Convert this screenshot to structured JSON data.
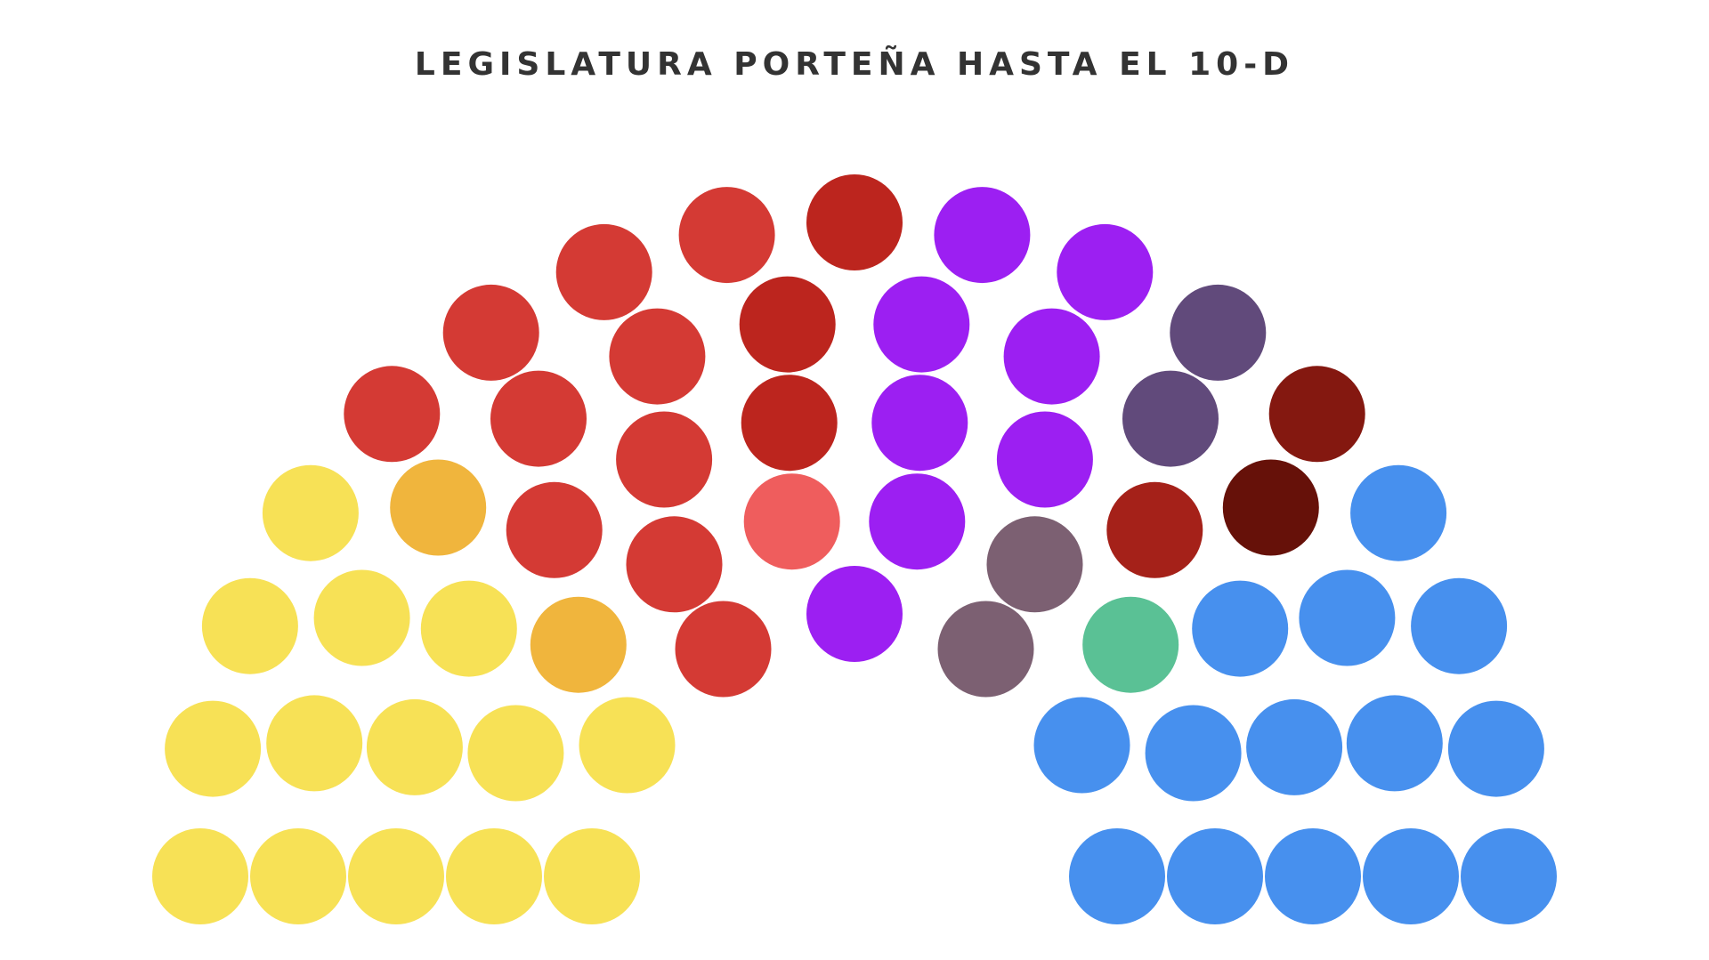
{
  "chart_data": {
    "type": "parliament",
    "title": "LEGISLATURA PORTEÑA HASTA EL 10-D",
    "total_seats": 60,
    "groups": [
      {
        "color": "#F7E156",
        "seats": 14
      },
      {
        "color": "#F0B53D",
        "seats": 2
      },
      {
        "color": "#D43A34",
        "seats": 10
      },
      {
        "color": "#EF5D5D",
        "seats": 1
      },
      {
        "color": "#BC251E",
        "seats": 3
      },
      {
        "color": "#9C1FF2",
        "seats": 8
      },
      {
        "color": "#7C6072",
        "seats": 2
      },
      {
        "color": "#614A7B",
        "seats": 2
      },
      {
        "color": "#A52119",
        "seats": 1
      },
      {
        "color": "#841810",
        "seats": 1
      },
      {
        "color": "#661109",
        "seats": 1
      },
      {
        "color": "#5AC195",
        "seats": 1
      },
      {
        "color": "#4790EE",
        "seats": 14
      }
    ]
  }
}
